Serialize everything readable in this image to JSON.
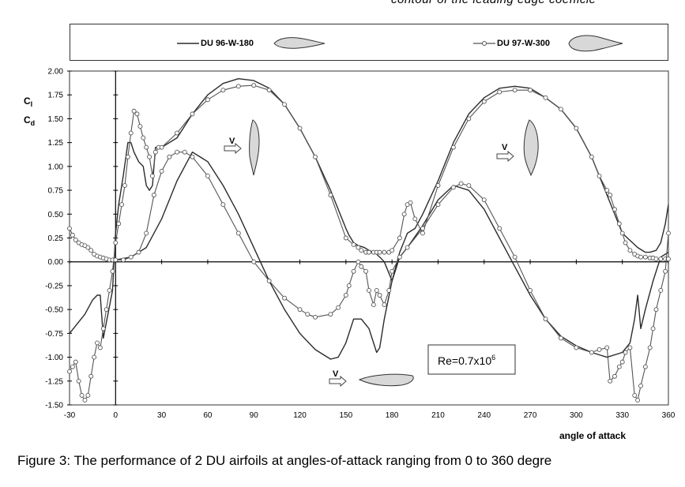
{
  "header_fragment": "contour of the leading edge coefficie",
  "caption": "Figure 3: The performance of 2 DU airfoils at angles-of-attack ranging from 0 to 360 degre",
  "chart_data": {
    "type": "line",
    "xlabel": "angle of attack",
    "ylabel_cl": "C",
    "ylabel_cl_sub": "l",
    "ylabel_cd": "C",
    "ylabel_cd_sub": "d",
    "annotation_re": "Re=0.7x10",
    "annotation_re_exp": "6",
    "velocity_label": "V",
    "xlim": [
      -30,
      360
    ],
    "ylim": [
      -1.5,
      2.0
    ],
    "xticks": [
      "-30",
      "0",
      "30",
      "60",
      "90",
      "120",
      "150",
      "180",
      "210",
      "240",
      "270",
      "300",
      "330",
      "360"
    ],
    "yticks": [
      "2.00",
      "1.75",
      "1.50",
      "1.25",
      "1.00",
      "0.75",
      "0.50",
      "0.25",
      "0.00",
      "-0.25",
      "-0.50",
      "-0.75",
      "-1.00",
      "-1.25",
      "-1.50"
    ],
    "legend_placement": "top",
    "series": [
      {
        "name": "DU 96-W-180",
        "marker": "none",
        "color": "#2b2b2b",
        "curves": [
          {
            "quantity": "Cl",
            "x": [
              -30,
              -25,
              -20,
              -15,
              -12,
              -10,
              -8,
              -5,
              -2,
              0,
              2,
              5,
              8,
              10,
              12,
              15,
              18,
              20,
              22,
              24,
              26,
              28,
              30,
              40,
              50,
              60,
              70,
              80,
              90,
              100,
              110,
              120,
              130,
              140,
              150,
              152,
              155,
              158,
              162,
              165,
              168,
              170,
              172,
              175,
              180,
              185,
              190,
              195,
              200,
              210,
              220,
              230,
              240,
              250,
              260,
              270,
              280,
              290,
              300,
              310,
              320,
              330,
              340,
              345,
              348,
              352,
              355,
              358,
              360
            ],
            "y": [
              -0.75,
              -0.65,
              -0.55,
              -0.4,
              -0.35,
              -0.35,
              -0.8,
              -0.55,
              -0.3,
              0.3,
              0.6,
              0.9,
              1.25,
              1.25,
              1.15,
              1.05,
              1.0,
              0.8,
              0.75,
              0.8,
              1.2,
              1.2,
              1.2,
              1.3,
              1.55,
              1.75,
              1.87,
              1.92,
              1.9,
              1.82,
              1.65,
              1.4,
              1.1,
              0.75,
              0.35,
              0.28,
              0.2,
              0.17,
              0.15,
              0.12,
              0.1,
              0.08,
              0.05,
              0.0,
              -0.2,
              0.1,
              0.3,
              0.35,
              0.5,
              0.85,
              1.25,
              1.55,
              1.72,
              1.82,
              1.84,
              1.82,
              1.72,
              1.6,
              1.4,
              1.1,
              0.7,
              0.3,
              0.15,
              0.1,
              0.1,
              0.12,
              0.2,
              0.4,
              0.6
            ]
          },
          {
            "quantity": "Cd",
            "x": [
              0,
              10,
              20,
              30,
              40,
              50,
              60,
              70,
              80,
              90,
              100,
              110,
              120,
              130,
              140,
              145,
              150,
              155,
              160,
              165,
              168,
              170,
              172,
              175,
              180,
              185,
              190,
              200,
              210,
              220,
              230,
              240,
              250,
              260,
              270,
              280,
              290,
              300,
              310,
              320,
              330,
              335,
              338,
              340,
              342,
              345,
              350,
              355,
              360
            ],
            "y": [
              0.02,
              0.05,
              0.15,
              0.45,
              0.85,
              1.15,
              1.05,
              0.8,
              0.5,
              0.15,
              -0.2,
              -0.5,
              -0.75,
              -0.92,
              -1.02,
              -1.0,
              -0.85,
              -0.6,
              -0.6,
              -0.7,
              -0.85,
              -0.95,
              -0.9,
              -0.6,
              -0.2,
              0.05,
              0.15,
              0.38,
              0.65,
              0.8,
              0.75,
              0.55,
              0.25,
              -0.05,
              -0.35,
              -0.6,
              -0.78,
              -0.88,
              -0.95,
              -1.0,
              -0.95,
              -0.85,
              -0.6,
              -0.35,
              -0.7,
              -0.5,
              -0.2,
              0.05,
              0.1
            ]
          }
        ]
      },
      {
        "name": "DU 97-W-300",
        "marker": "circle",
        "color": "#555555",
        "curves": [
          {
            "quantity": "Cl",
            "x": [
              -30,
              -28,
              -26,
              -24,
              -22,
              -20,
              -18,
              -16,
              -14,
              -12,
              -10,
              -8,
              -6,
              -4,
              -2,
              0,
              2,
              4,
              6,
              8,
              10,
              12,
              14,
              16,
              18,
              20,
              22,
              24,
              26,
              28,
              30,
              40,
              50,
              60,
              70,
              80,
              90,
              100,
              110,
              120,
              130,
              140,
              150,
              155,
              158,
              160,
              163,
              165,
              168,
              170,
              172,
              175,
              178,
              180,
              185,
              188,
              190,
              192,
              195,
              200,
              210,
              220,
              230,
              240,
              250,
              260,
              270,
              280,
              290,
              300,
              310,
              315,
              320,
              322,
              325,
              328,
              330,
              332,
              335,
              338,
              340,
              342,
              345,
              348,
              350,
              352,
              355,
              358,
              360
            ],
            "y": [
              -1.15,
              -1.1,
              -1.05,
              -1.25,
              -1.4,
              -1.45,
              -1.4,
              -1.2,
              -1.0,
              -0.85,
              -0.9,
              -0.7,
              -0.5,
              -0.3,
              -0.1,
              0.2,
              0.4,
              0.6,
              0.8,
              1.1,
              1.35,
              1.58,
              1.55,
              1.42,
              1.3,
              1.2,
              1.1,
              0.9,
              1.15,
              1.2,
              1.2,
              1.35,
              1.55,
              1.7,
              1.8,
              1.84,
              1.85,
              1.8,
              1.65,
              1.4,
              1.1,
              0.7,
              0.25,
              0.18,
              0.15,
              0.12,
              0.1,
              0.1,
              0.1,
              0.1,
              0.1,
              0.1,
              0.1,
              0.12,
              0.25,
              0.5,
              0.6,
              0.62,
              0.45,
              0.3,
              0.8,
              1.2,
              1.5,
              1.68,
              1.78,
              1.8,
              1.8,
              1.72,
              1.6,
              1.4,
              1.1,
              0.9,
              0.75,
              0.7,
              0.55,
              0.4,
              0.3,
              0.2,
              0.12,
              0.08,
              0.06,
              0.05,
              0.05,
              0.04,
              0.04,
              0.03,
              0.03,
              0.03,
              0.03
            ]
          },
          {
            "quantity": "Cd",
            "x": [
              -30,
              -28,
              -26,
              -24,
              -22,
              -20,
              -18,
              -16,
              -14,
              -12,
              -10,
              -8,
              -6,
              -4,
              -2,
              0,
              5,
              10,
              15,
              20,
              25,
              30,
              35,
              40,
              45,
              50,
              60,
              70,
              80,
              90,
              100,
              110,
              120,
              125,
              130,
              140,
              145,
              150,
              152,
              155,
              158,
              160,
              163,
              165,
              168,
              170,
              172,
              175,
              178,
              180,
              185,
              190,
              200,
              210,
              220,
              225,
              230,
              240,
              250,
              260,
              270,
              280,
              290,
              300,
              310,
              315,
              320,
              322,
              325,
              328,
              330,
              332,
              335,
              338,
              340,
              342,
              345,
              348,
              350,
              352,
              355,
              358,
              360
            ],
            "y": [
              0.35,
              0.28,
              0.23,
              0.2,
              0.18,
              0.17,
              0.15,
              0.12,
              0.08,
              0.06,
              0.05,
              0.04,
              0.03,
              0.02,
              0.02,
              0.02,
              0.02,
              0.05,
              0.1,
              0.3,
              0.7,
              0.95,
              1.1,
              1.15,
              1.15,
              1.1,
              0.9,
              0.6,
              0.3,
              0.0,
              -0.2,
              -0.38,
              -0.5,
              -0.55,
              -0.58,
              -0.55,
              -0.48,
              -0.35,
              -0.25,
              -0.1,
              0.0,
              -0.05,
              -0.1,
              -0.3,
              -0.45,
              -0.3,
              -0.35,
              -0.45,
              -0.3,
              -0.1,
              0.05,
              0.15,
              0.35,
              0.6,
              0.78,
              0.82,
              0.8,
              0.65,
              0.35,
              0.05,
              -0.3,
              -0.6,
              -0.8,
              -0.9,
              -0.95,
              -0.92,
              -0.9,
              -1.25,
              -1.2,
              -1.1,
              -1.05,
              -0.95,
              -0.9,
              -1.4,
              -1.45,
              -1.3,
              -1.1,
              -0.9,
              -0.7,
              -0.5,
              -0.3,
              -0.1,
              0.3
            ]
          }
        ]
      }
    ]
  }
}
